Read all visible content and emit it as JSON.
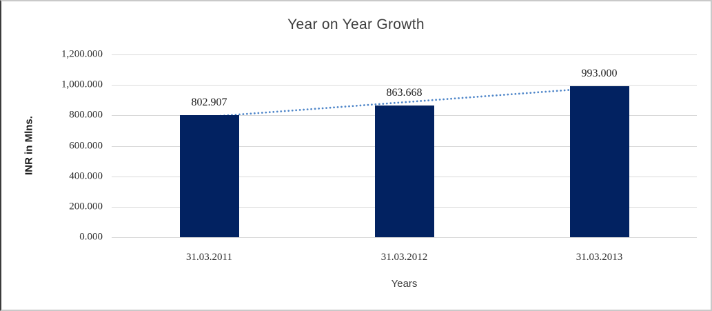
{
  "chart_data": {
    "type": "bar",
    "title": "Year on Year Growth",
    "xlabel": "Years",
    "ylabel": "INR in Mlns.",
    "categories": [
      "31.03.2011",
      "31.03.2012",
      "31.03.2013"
    ],
    "values": [
      802.907,
      863.668,
      993.0
    ],
    "data_labels": [
      "802.907",
      "863.668",
      "993.000"
    ],
    "ylim": [
      0,
      1200
    ],
    "ytick_step": 200,
    "ytick_labels": [
      "0.000",
      "200.000",
      "400.000",
      "600.000",
      "800.000",
      "1,000.000",
      "1,200.000"
    ],
    "grid": true,
    "legend": "none",
    "bar_color": "#022261",
    "gridline_color": "#d9d9d9",
    "trendline": {
      "type": "linear",
      "style": "dotted",
      "color": "#4f86c9"
    }
  }
}
